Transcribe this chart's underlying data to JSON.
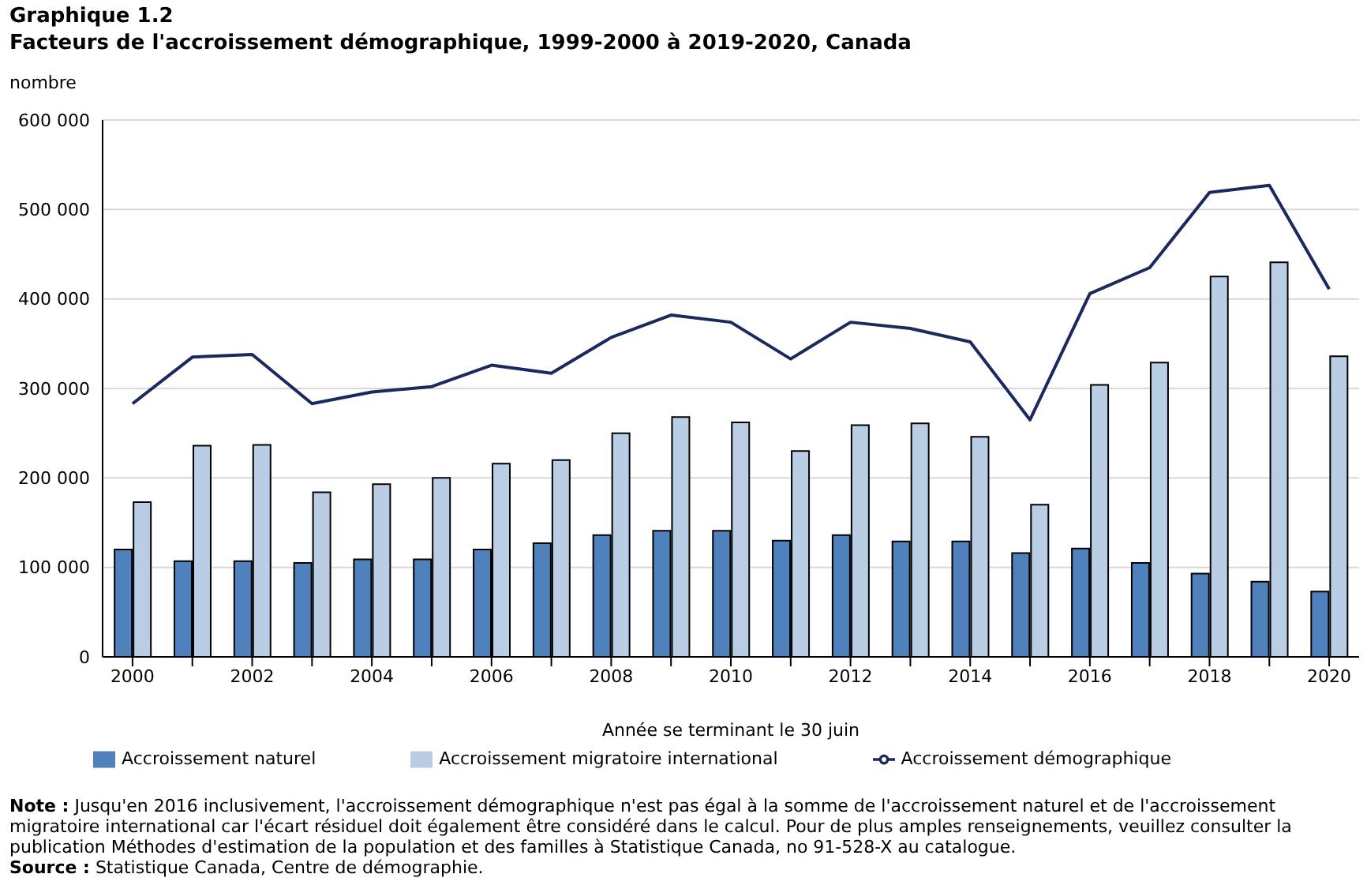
{
  "chart_data": {
    "type": "bar",
    "title": "Graphique 1.2",
    "subtitle": "Facteurs de l'accroissement démographique, 1999-2000 à 2019-2020, Canada",
    "ylabel": "nombre",
    "xlabel": "Année se terminant le 30 juin",
    "categories": [
      "2000",
      null,
      "2002",
      null,
      "2004",
      null,
      "2006",
      null,
      "2008",
      null,
      "2010",
      null,
      "2012",
      null,
      "2014",
      null,
      "2016",
      null,
      "2018",
      null,
      "2020"
    ],
    "series": [
      {
        "name": "Accroissement naturel",
        "color": "#4f81bd",
        "values": [
          120000,
          107000,
          107000,
          105000,
          109000,
          109000,
          120000,
          127000,
          136000,
          141000,
          141000,
          130000,
          136000,
          129000,
          129000,
          116000,
          121000,
          105000,
          93000,
          84000,
          73000
        ]
      },
      {
        "name": "Accroissement migratoire international",
        "color": "#b9cde5",
        "values": [
          173000,
          236000,
          237000,
          184000,
          193000,
          200000,
          216000,
          220000,
          250000,
          268000,
          262000,
          230000,
          259000,
          261000,
          246000,
          170000,
          304000,
          329000,
          425000,
          441000,
          336000
        ]
      },
      {
        "name": "Accroissement démographique",
        "type": "line",
        "color": "#1b2a5e",
        "values": [
          283000,
          335000,
          338000,
          283000,
          296000,
          302000,
          326000,
          317000,
          357000,
          382000,
          374000,
          333000,
          374000,
          367000,
          352000,
          265000,
          406000,
          435000,
          519000,
          527000,
          411000
        ]
      }
    ],
    "ylim": [
      0,
      600000
    ],
    "yticks": [
      0,
      {
        "value": 100000,
        "label": "100 000"
      },
      {
        "value": 200000,
        "label": "200 000"
      },
      {
        "value": 300000,
        "label": "300 000"
      },
      {
        "value": 400000,
        "label": "400 000"
      },
      {
        "value": 500000,
        "label": "500 000"
      },
      {
        "value": 600000,
        "label": "600 000"
      }
    ],
    "grid": "y",
    "legend": "bottom",
    "annotations": [
      "Note : Jusqu'en 2016 inclusivement, l'accroissement démographique n'est pas égal à la somme de l'accroissement naturel et de l'accroissement migratoire international car l'écart résiduel doit également être considéré dans le calcul. Pour de plus amples renseignements, veuillez consulter la publication Méthodes d'estimation de la population et des familles à Statistique Canada, no 91-528-X au catalogue.",
      "Source : Statistique Canada, Centre de démographie."
    ]
  }
}
